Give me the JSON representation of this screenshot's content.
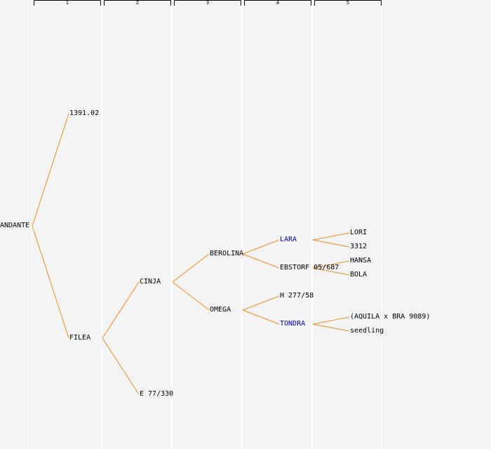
{
  "columns": [
    "1",
    "2",
    "3",
    "4",
    "5"
  ],
  "colors": {
    "line": "#f08a1c",
    "highlight": "#0000cc",
    "text": "#000000",
    "background": "#f4f4f4"
  },
  "nodes": {
    "andante": "ANDANTE",
    "p1391": "1391.02",
    "filea": "FILEA",
    "cinja": "CINJA",
    "e77": "E 77/330",
    "berolina": "BEROLINA",
    "omega": "OMEGA",
    "lara": "LARA",
    "ebstorf": "EBSTORF 05/687",
    "h277": "H 277/58",
    "tondra": "TONDRA",
    "lori": "LORI",
    "p3312": "3312",
    "hansa": "HANSA",
    "bola": "BOLA",
    "aquila": "(AQUILA x BRA 9089)",
    "seedling": "seedling"
  }
}
